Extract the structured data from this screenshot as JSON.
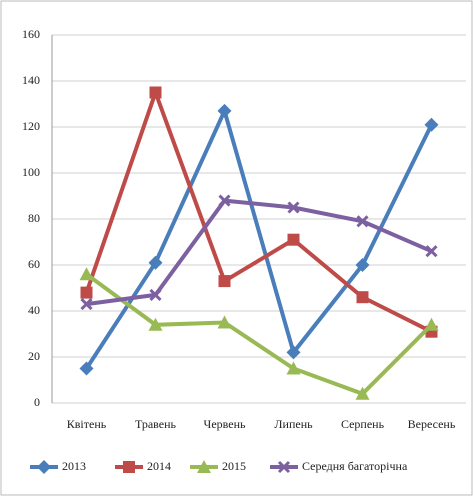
{
  "chart_data": {
    "type": "line",
    "categories": [
      "Квітень",
      "Травень",
      "Червень",
      "Липень",
      "Серпень",
      "Вересень"
    ],
    "series": [
      {
        "name": "2013",
        "color": "#4a7ebb",
        "marker": "diamond",
        "values": [
          15,
          61,
          127,
          22,
          60,
          121
        ]
      },
      {
        "name": "2014",
        "color": "#be4b48",
        "marker": "square",
        "values": [
          48,
          135,
          53,
          71,
          46,
          31
        ]
      },
      {
        "name": "2015",
        "color": "#98b954",
        "marker": "triangle",
        "values": [
          56,
          34,
          35,
          15,
          4,
          34
        ]
      },
      {
        "name": "Середня багаторічна",
        "color": "#7d60a0",
        "marker": "x",
        "values": [
          43,
          47,
          88,
          85,
          79,
          66
        ]
      }
    ],
    "ylim": [
      0,
      160
    ],
    "yticks": [
      0,
      20,
      40,
      60,
      80,
      100,
      120,
      140,
      160
    ],
    "grid": true,
    "legend": "bottom"
  }
}
